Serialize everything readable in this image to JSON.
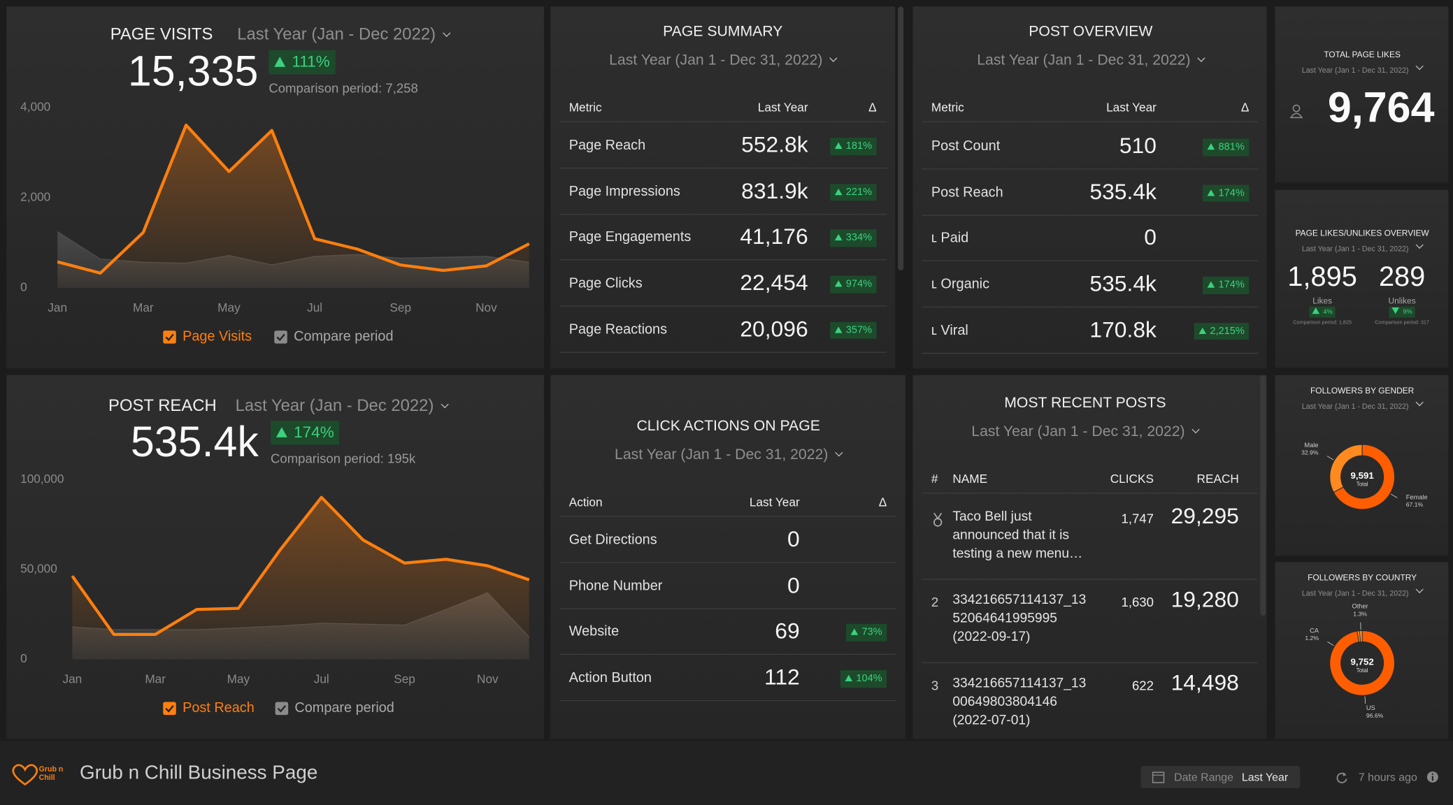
{
  "page_visits": {
    "title": "PAGE VISITS",
    "period": "Last Year (Jan - Dec 2022)",
    "value": "15,335",
    "change": "111%",
    "comparison": "Comparison period: 7,258",
    "chart": {
      "type": "area",
      "categories": [
        "Jan",
        null,
        "Mar",
        null,
        "May",
        null,
        "Jul",
        null,
        "Sep",
        null,
        "Nov",
        null
      ],
      "series": [
        {
          "name": "Page Visits",
          "color": "#ff7f0e",
          "values": [
            580,
            330,
            1230,
            3610,
            2580,
            3490,
            1090,
            860,
            510,
            390,
            490,
            980
          ]
        },
        {
          "name": "Compare period",
          "color": "#4d4d4d",
          "values": [
            1250,
            640,
            570,
            550,
            720,
            510,
            700,
            740,
            660,
            680,
            700,
            570
          ]
        }
      ],
      "ylim": [
        0,
        4000
      ],
      "yticks": [
        0,
        {
          "value": 2000,
          "label": "2,000"
        },
        {
          "value": 4000,
          "label": "4,000"
        }
      ],
      "grid": false
    }
  },
  "post_reach": {
    "title": "POST REACH",
    "period": "Last Year (Jan - Dec 2022)",
    "value": "535.4k",
    "change": "174%",
    "comparison": "Comparison period: 195k",
    "chart": {
      "type": "area",
      "categories": [
        "Jan",
        null,
        "Mar",
        null,
        "May",
        null,
        "Jul",
        null,
        "Sep",
        null,
        "Nov",
        null
      ],
      "series": [
        {
          "name": "Post Reach",
          "color": "#ff7f0e",
          "values": [
            46400,
            13900,
            13900,
            27800,
            28400,
            60800,
            90200,
            66500,
            53600,
            55700,
            52100,
            44300
          ]
        },
        {
          "name": "Compare period",
          "color": "#4d4d4d",
          "values": [
            18000,
            16500,
            16500,
            16500,
            17500,
            18600,
            20100,
            19600,
            19100,
            27800,
            37100,
            12400
          ]
        }
      ],
      "ylim": [
        0,
        100000
      ],
      "yticks": [
        0,
        {
          "value": 50000,
          "label": "50,000"
        },
        {
          "value": 100000,
          "label": "100,000"
        }
      ],
      "grid": false
    }
  },
  "page_summary": {
    "title": "PAGE SUMMARY",
    "period": "Last Year (Jan 1 - Dec 31, 2022)",
    "columns": [
      "Metric",
      "Last Year",
      "Δ"
    ],
    "rows": [
      {
        "metric": "Page Reach",
        "value": "552.8k",
        "change": "181%"
      },
      {
        "metric": "Page Impressions",
        "value": "831.9k",
        "change": "221%"
      },
      {
        "metric": "Page Engagements",
        "value": "41,176",
        "change": "334%"
      },
      {
        "metric": "Page Clicks",
        "value": "22,454",
        "change": "974%"
      },
      {
        "metric": "Page Reactions",
        "value": "20,096",
        "change": "357%"
      }
    ]
  },
  "post_overview": {
    "title": "POST OVERVIEW",
    "period": "Last Year (Jan 1 - Dec 31, 2022)",
    "columns": [
      "Metric",
      "Last Year",
      "Δ"
    ],
    "rows": [
      {
        "metric": "Post Count",
        "value": "510",
        "change": "881%"
      },
      {
        "metric": "Post Reach",
        "value": "535.4k",
        "change": "174%"
      },
      {
        "metric": "ʟ Paid",
        "value": "0"
      },
      {
        "metric": "ʟ Organic",
        "value": "535.4k",
        "change": "174%"
      },
      {
        "metric": "ʟ Viral",
        "value": "170.8k",
        "change": "2,215%"
      }
    ]
  },
  "click_actions": {
    "title": "CLICK ACTIONS ON PAGE",
    "period": "Last Year (Jan 1 - Dec 31, 2022)",
    "columns": [
      "Action",
      "Last Year",
      "Δ"
    ],
    "rows": [
      {
        "metric": "Get Directions",
        "value": "0"
      },
      {
        "metric": "Phone Number",
        "value": "0"
      },
      {
        "metric": "Website",
        "value": "69",
        "change": "73%"
      },
      {
        "metric": "Action Button",
        "value": "112",
        "change": "104%"
      }
    ]
  },
  "recent_posts": {
    "title": "MOST RECENT POSTS",
    "period": "Last Year (Jan 1 - Dec 31, 2022)",
    "columns": [
      "#",
      "NAME",
      "CLICKS",
      "REACH"
    ],
    "rows": [
      {
        "name": "Taco Bell just announced that it is testing a new menu…",
        "clicks": "1,747",
        "reach": "29,295"
      },
      {
        "rank": "2",
        "name": "334216657114137_1352064641995995 (2022-09-17)",
        "clicks": "1,630",
        "reach": "19,280"
      },
      {
        "rank": "3",
        "name": "334216657114137_1300649803804146 (2022-07-01)",
        "clicks": "622",
        "reach": "14,498"
      }
    ]
  },
  "total_likes": {
    "title": "TOTAL PAGE LIKES",
    "period": "Last Year (Jan 1 - Dec 31, 2022)",
    "value": "9,764"
  },
  "likes_unlikes": {
    "title": "PAGE LIKES/UNLIKES OVERVIEW",
    "period": "Last Year (Jan 1 - Dec 31, 2022)",
    "items": [
      {
        "value": "1,895",
        "label": "Likes",
        "change": "4%",
        "direction": "up",
        "comparison": "Comparison period: 1,825"
      },
      {
        "value": "289",
        "label": "Unlikes",
        "change": "9%",
        "direction": "down",
        "comparison": "Comparison period: 317"
      }
    ]
  },
  "followers_gender": {
    "title": "FOLLOWERS BY GENDER",
    "period": "Last Year (Jan 1 - Dec 31, 2022)",
    "total": "9,591",
    "total_label": "Total",
    "chart": {
      "type": "donut",
      "categories": [
        "Male",
        "Female"
      ],
      "values": [
        32.9,
        67.1
      ],
      "value_labels": [
        "32.9%",
        "67.1%"
      ],
      "colors": [
        "#ff8a1f",
        "#ff5e00"
      ]
    }
  },
  "followers_country": {
    "title": "FOLLOWERS BY COUNTRY",
    "period": "Last Year (Jan 1 - Dec 31, 2022)",
    "total": "9,752",
    "total_label": "Total",
    "chart": {
      "type": "donut",
      "categories": [
        "Other",
        "CA",
        "US"
      ],
      "values": [
        1.3,
        1.2,
        96.6
      ],
      "value_labels": [
        "1.3%",
        "1.2%",
        "96.6%"
      ],
      "colors": [
        "#ffa040",
        "#ff8a1f",
        "#ff5e00"
      ]
    }
  },
  "footer": {
    "brand": "Grub n Chill",
    "title": "Grub n Chill Business Page",
    "date_range_label": "Date Range",
    "date_range_value": "Last Year",
    "updated": "7 hours ago"
  }
}
